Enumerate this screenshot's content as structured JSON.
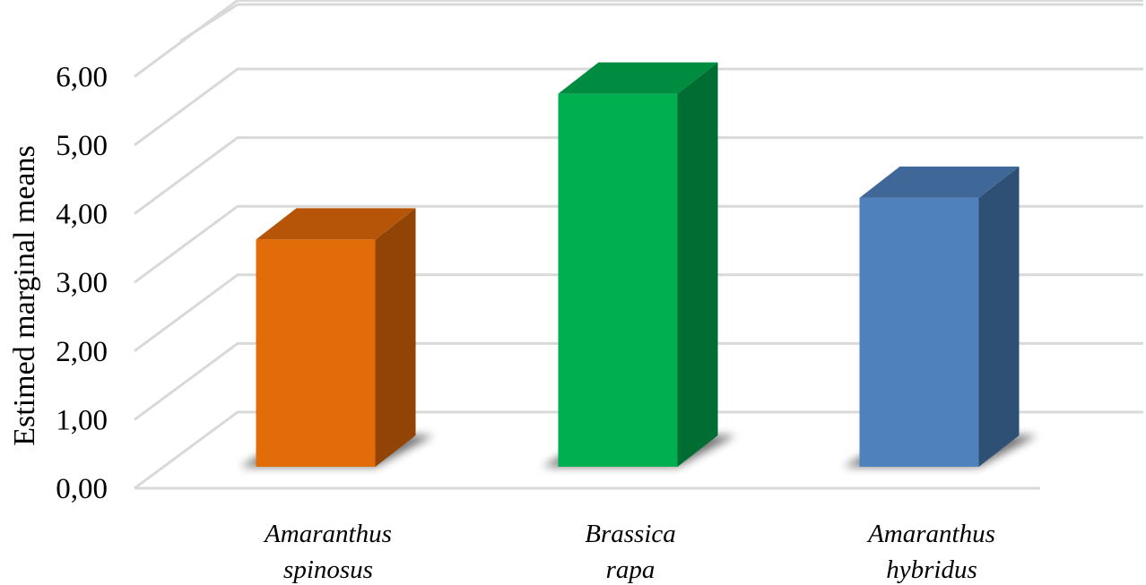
{
  "chart_data": {
    "type": "bar",
    "style": "3d-column",
    "categories": [
      {
        "line1": "Amaranthus",
        "line2": "spinosus"
      },
      {
        "line1": "Brassica",
        "line2": "rapa"
      },
      {
        "line1": "Amaranthus",
        "line2": "hybridus"
      }
    ],
    "values": [
      3.35,
      5.45,
      3.95
    ],
    "colors": [
      {
        "front": "#E36C0A",
        "top": "#B65508",
        "side": "#914406"
      },
      {
        "front": "#00B050",
        "top": "#008C40",
        "side": "#006D32"
      },
      {
        "front": "#4F81BD",
        "top": "#3F6797",
        "side": "#2F5075"
      }
    ],
    "title": "",
    "xlabel": "",
    "ylabel": "Estimed marginal means",
    "ylim": [
      0,
      6
    ],
    "yticks": [
      "0,00",
      "1,00",
      "2,00",
      "3,00",
      "4,00",
      "5,00",
      "6,00"
    ],
    "grid": true,
    "legend": "none"
  }
}
